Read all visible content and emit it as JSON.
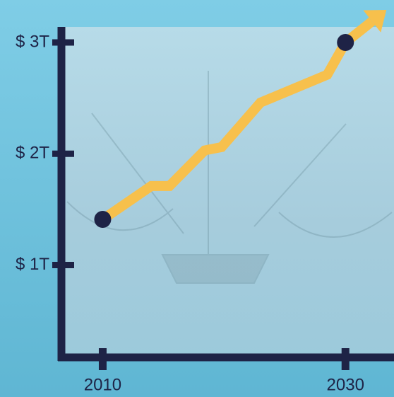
{
  "chart_data": {
    "type": "line",
    "x": [
      2010,
      2014,
      2015.5,
      2018.4,
      2019.8,
      2023,
      2028.5,
      2030
    ],
    "series": [
      {
        "color": "#f7c04c",
        "values": [
          1.41,
          1.71,
          1.71,
          2.03,
          2.06,
          2.46,
          2.71,
          3.0
        ]
      }
    ],
    "marker_color": "#1e2346",
    "axis_color": "#1e2346",
    "xlim": [
      2006.6,
      2034
    ],
    "ylim": [
      0.17,
      3.14
    ],
    "xticks": [
      2010,
      2030
    ],
    "yticks": [
      {
        "value": 1,
        "label": "$ 1T"
      },
      {
        "value": 2,
        "label": "$ 2T"
      },
      {
        "value": 3,
        "label": "$ 3T"
      }
    ]
  }
}
